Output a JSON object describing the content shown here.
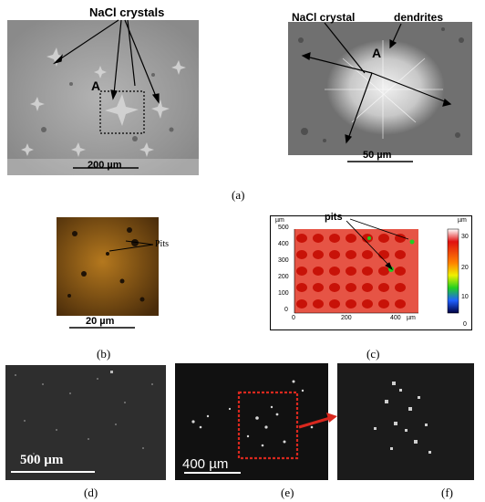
{
  "panel_a_left": {
    "label_crystals": "NaCl crystals",
    "region_marker": "A",
    "scale": "200 µm"
  },
  "panel_a_right": {
    "label_crystal": "NaCl crystal",
    "label_dendrites": "dendrites",
    "region_marker": "A",
    "scale": "50 µm"
  },
  "caption_a": "(a)",
  "panel_b": {
    "label_pits": "Pits",
    "scale": "20 µm"
  },
  "caption_b": "(b)",
  "panel_c": {
    "label_pits": "pits",
    "unit": "µm",
    "y_ticks": [
      "500",
      "400",
      "300",
      "200",
      "100",
      "0"
    ],
    "x_ticks": [
      "0",
      "200",
      "400"
    ],
    "x_unit": "µm",
    "colorbar_unit": "µm",
    "colorbar_ticks": [
      "30",
      "20",
      "10",
      "0"
    ],
    "colors": {
      "surface": "#e02010",
      "pit": "#c81208",
      "colorbar_top": "#ffffff"
    }
  },
  "caption_c": "(c)",
  "panel_d": {
    "scale": "500 µm"
  },
  "caption_d": "(d)",
  "panel_e": {
    "scale": "400 µm"
  },
  "caption_e": "(e)",
  "caption_f": "(f)",
  "colors": {
    "highlight_box": "#d9281e",
    "arrow": "#d9281e"
  }
}
